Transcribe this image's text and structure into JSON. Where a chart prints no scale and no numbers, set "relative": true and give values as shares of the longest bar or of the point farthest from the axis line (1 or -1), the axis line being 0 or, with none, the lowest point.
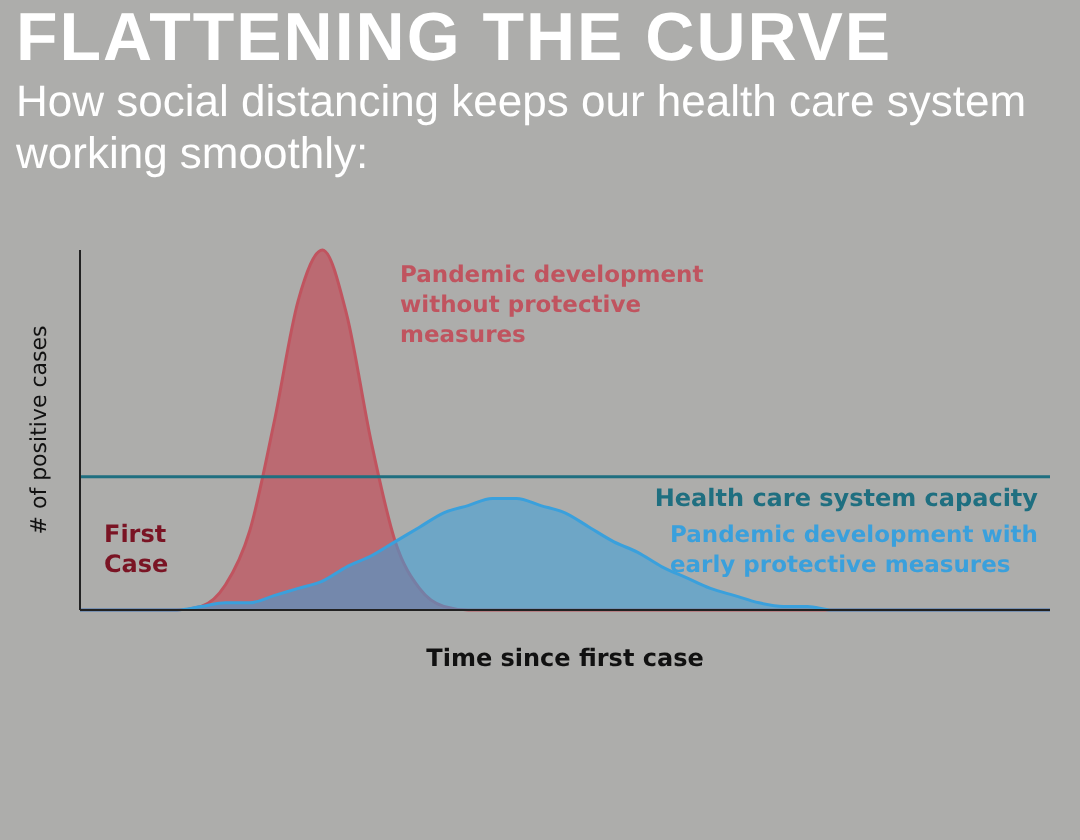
{
  "chart_data": {
    "type": "area",
    "title": "FLATTENING THE CURVE",
    "subtitle": "How social distancing keeps our health care system working smoothly:",
    "xlabel": "Time since first case",
    "ylabel": "# of positive cases",
    "relative": true,
    "categories": [
      null,
      null,
      null,
      null,
      null,
      null,
      null,
      null,
      null,
      null,
      null,
      null,
      null,
      null,
      null,
      null,
      null,
      null,
      null,
      null,
      null,
      null,
      null,
      null,
      null,
      null,
      null,
      null,
      null,
      null,
      null,
      null,
      null,
      null,
      null,
      null,
      null,
      null,
      null,
      null,
      null
    ],
    "series": [
      {
        "name": "Pandemic development without protective measures",
        "color": "#c0545f",
        "values": [
          0,
          0,
          0,
          0,
          0,
          0.01,
          0.07,
          0.22,
          0.52,
          0.86,
          1,
          0.82,
          0.47,
          0.19,
          0.06,
          0.01,
          0,
          0,
          0,
          0,
          0,
          0,
          0,
          0,
          0,
          0,
          0,
          0,
          0,
          0,
          0,
          0,
          0,
          0,
          0,
          0,
          0,
          0,
          0,
          0,
          0
        ]
      },
      {
        "name": "Pandemic development with early protective measures",
        "color": "#3aa0dc",
        "values": [
          0,
          0,
          0,
          0,
          0,
          0.01,
          0.02,
          0.02,
          0.04,
          0.06,
          0.08,
          0.12,
          0.15,
          0.19,
          0.23,
          0.27,
          0.29,
          0.31,
          0.31,
          0.29,
          0.27,
          0.23,
          0.19,
          0.16,
          0.12,
          0.09,
          0.06,
          0.04,
          0.02,
          0.01,
          0.01,
          0,
          0,
          0,
          0,
          0,
          0,
          0,
          0,
          0,
          0
        ]
      }
    ],
    "ref_lines": [
      {
        "axis": "y",
        "value": 0.37,
        "label": "Health care system capacity",
        "color": "#1f6f80"
      }
    ],
    "annotations": [
      "First Case"
    ]
  }
}
